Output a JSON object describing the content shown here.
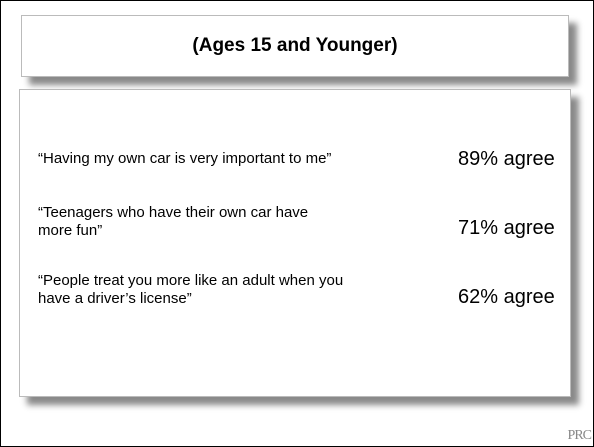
{
  "header": {
    "title": "(Ages 15 and Younger)"
  },
  "items": [
    {
      "statement": "“Having my own car is very important to me”",
      "result": "89% agree"
    },
    {
      "statement": "“Teenagers who have their own car have more fun”",
      "result": "71% agree"
    },
    {
      "statement": "“People treat you more like an adult when you have a driver’s license”",
      "result": "62% agree"
    }
  ],
  "logo": "PRC"
}
